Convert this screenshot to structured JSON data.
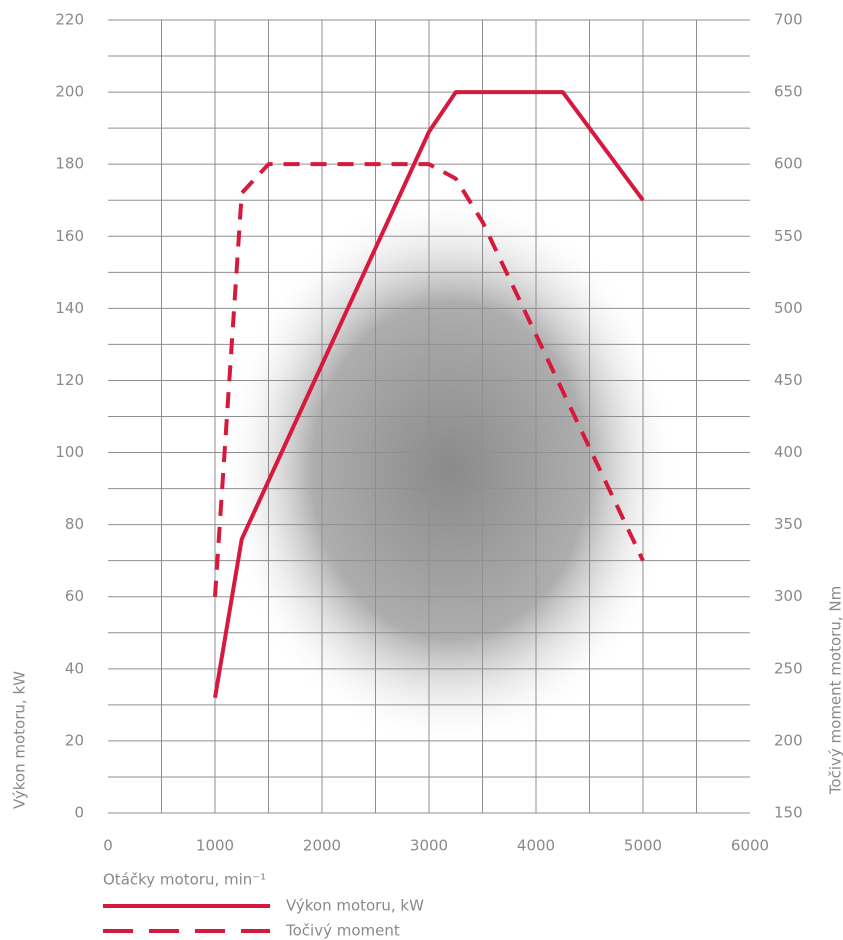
{
  "chart_data": {
    "type": "line",
    "xlabel": "Otáčky motoru, min⁻¹",
    "ylabel": "Výkon motoru, kW",
    "y2label": "Točivý moment motoru, Nm",
    "xlim": [
      0,
      6000
    ],
    "xticks": [
      0,
      1000,
      2000,
      3000,
      4000,
      5000,
      6000
    ],
    "ylim": [
      0,
      220
    ],
    "yticks": [
      0,
      20,
      40,
      60,
      80,
      100,
      120,
      140,
      160,
      180,
      200,
      220
    ],
    "y2lim": [
      150,
      700
    ],
    "y2ticks": [
      150,
      200,
      250,
      300,
      350,
      400,
      450,
      500,
      550,
      600,
      650,
      700
    ],
    "grid": true,
    "series": [
      {
        "name": "Výkon motoru, kW",
        "color": "#d6193d",
        "style": "solid",
        "x": [
          1000,
          1250,
          3000,
          3250,
          4250,
          5000
        ],
        "values": [
          32,
          76,
          189,
          200,
          200,
          170
        ]
      },
      {
        "name": "Točivý moment",
        "color": "#d6193d",
        "style": "dashed",
        "axis": "y2",
        "x": [
          1000,
          1250,
          1500,
          3000,
          3250,
          3500,
          5000
        ],
        "values": [
          300,
          580,
          600,
          600,
          590,
          560,
          325
        ]
      }
    ]
  }
}
